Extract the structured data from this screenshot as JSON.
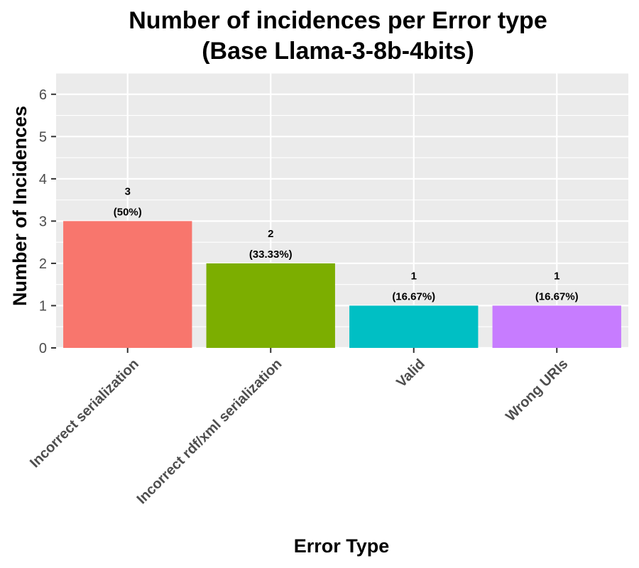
{
  "chart_data": {
    "type": "bar",
    "title": "Number of incidences per Error type",
    "subtitle": "(Base Llama-3-8b-4bits)",
    "xlabel": "Error Type",
    "ylabel": "Number of Incidences",
    "categories": [
      "Incorrect serialization",
      "Incorrect rdf/xml serialization",
      "Valid",
      "Wrong URIs"
    ],
    "values": [
      3,
      2,
      1,
      1
    ],
    "count_labels": [
      "3",
      "2",
      "1",
      "1"
    ],
    "percent_labels": [
      "(50%)",
      "(33.33%)",
      "(16.67%)",
      "(16.67%)"
    ],
    "colors": [
      "#F8766D",
      "#7CAE00",
      "#00BFC4",
      "#C77CFF"
    ],
    "yticks": [
      0,
      1,
      2,
      3,
      4,
      5,
      6
    ],
    "ylim": [
      0,
      6.5
    ],
    "grid": true,
    "legend": "none",
    "panel_background": "#EBEBEB",
    "gridline_color": "#FFFFFF"
  }
}
